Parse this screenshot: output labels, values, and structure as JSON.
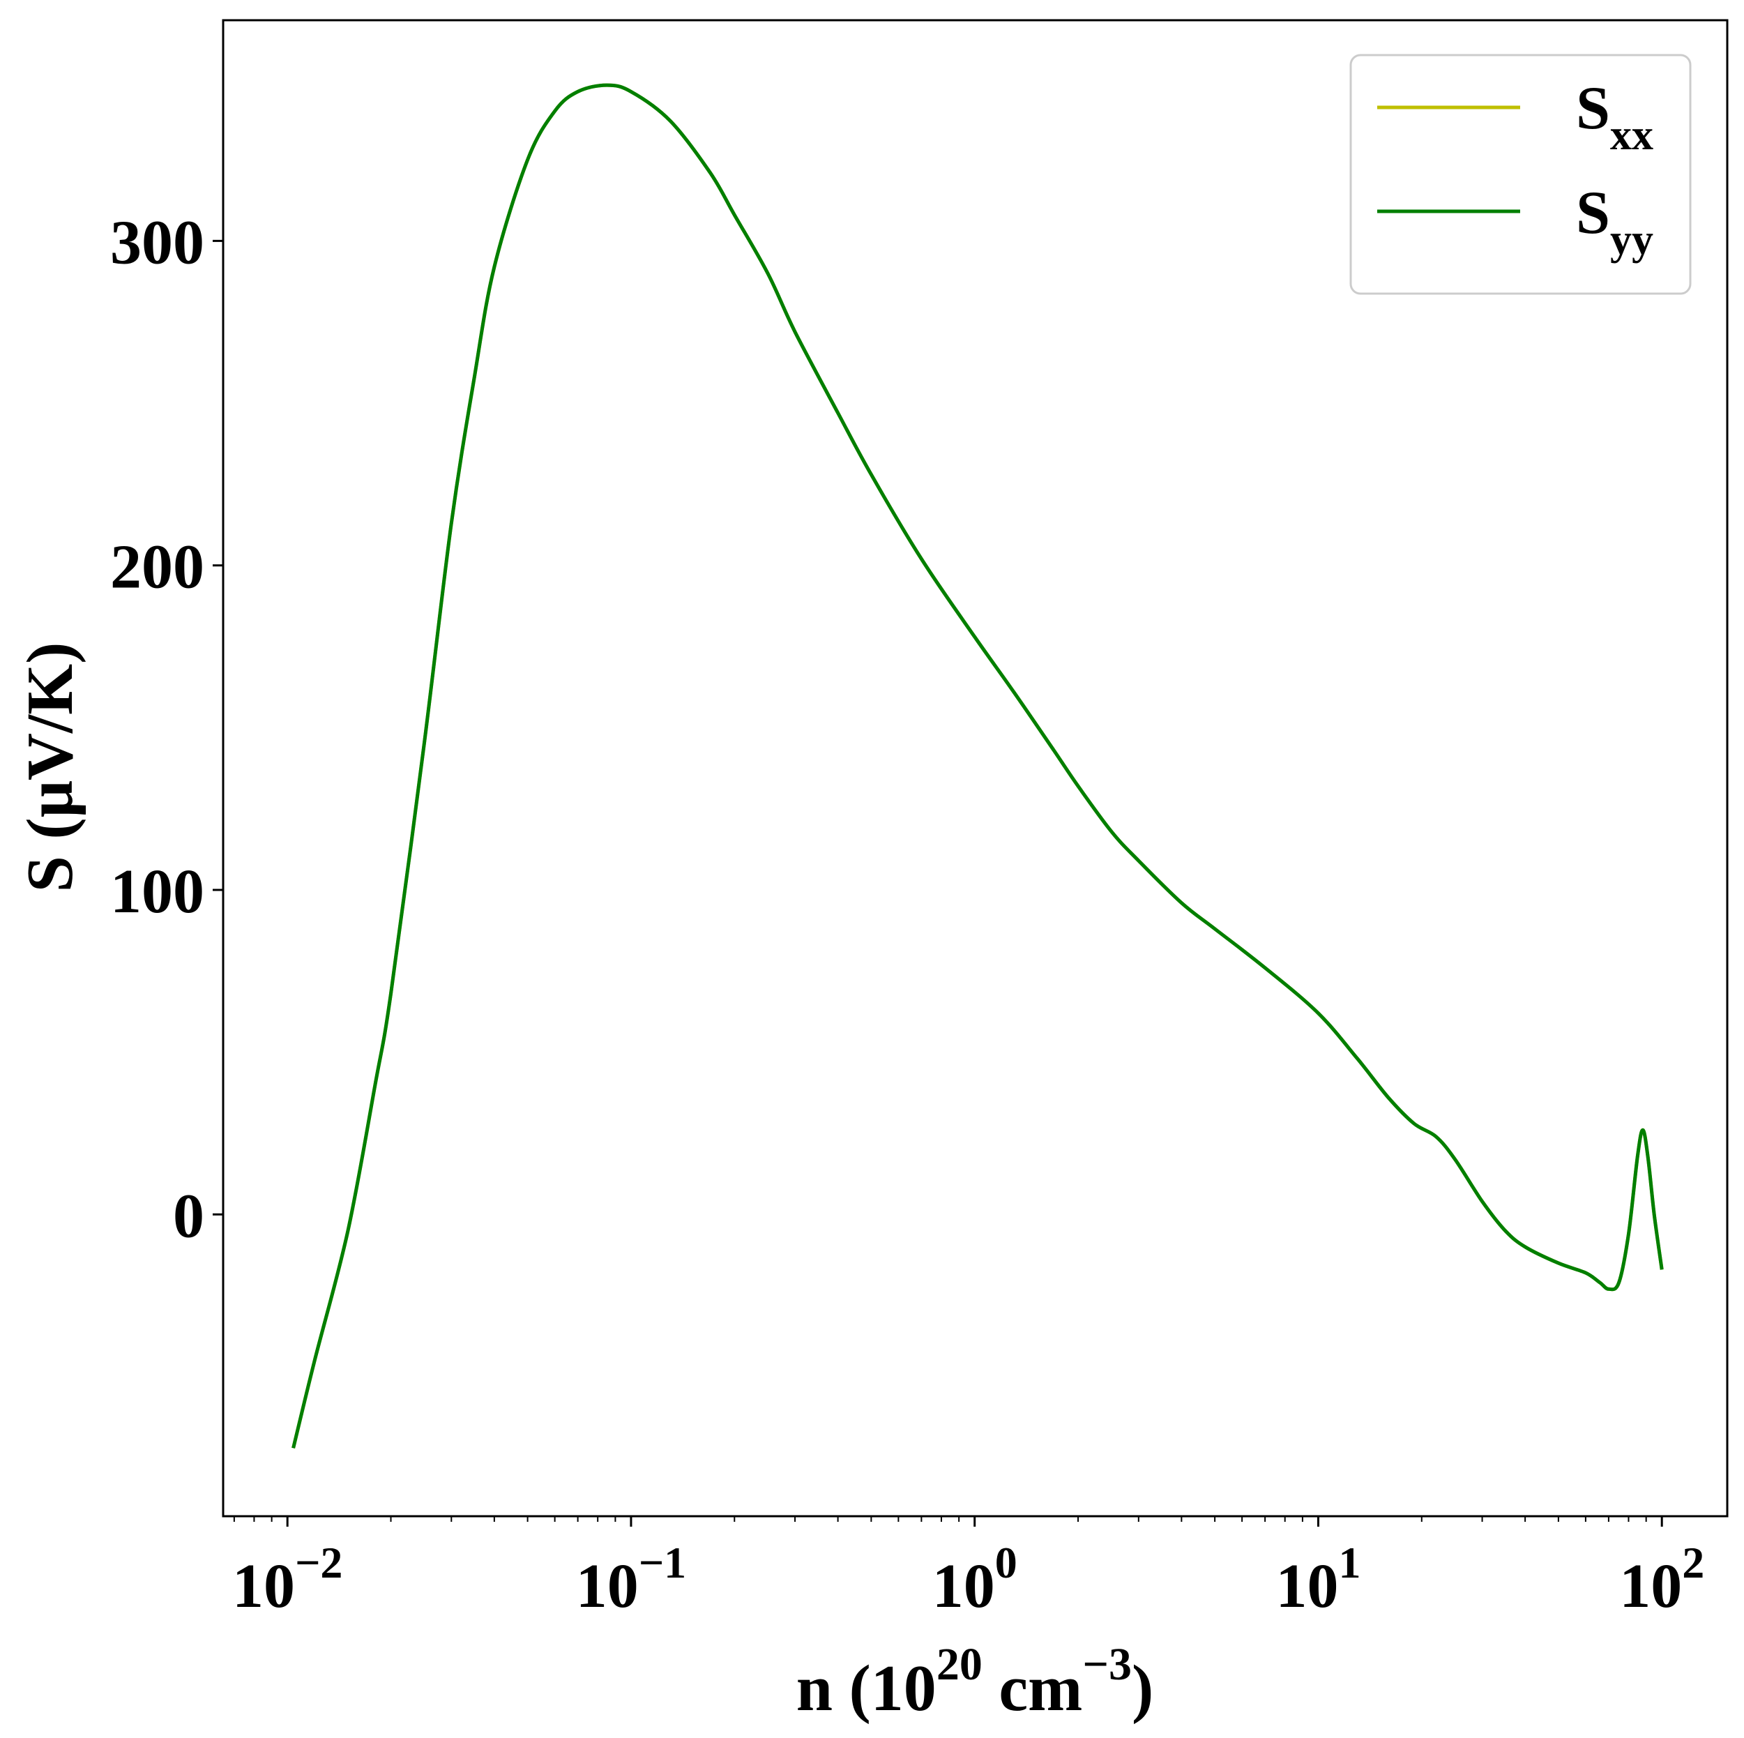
{
  "chart_data": {
    "type": "line",
    "title": "",
    "xlabel": {
      "base": "n (10",
      "exp": "20",
      "mid": " cm",
      "exp2": "−3",
      "end": ")"
    },
    "ylabel": "S (μV/K)",
    "xscale": "log",
    "xlim": [
      0.0065,
      155
    ],
    "ylim": [
      -93,
      368
    ],
    "x_ticks": [
      {
        "value": 0.01,
        "base": "10",
        "exp": "−2"
      },
      {
        "value": 0.1,
        "base": "10",
        "exp": "−1"
      },
      {
        "value": 1,
        "base": "10",
        "exp": "0"
      },
      {
        "value": 10,
        "base": "10",
        "exp": "1"
      },
      {
        "value": 100,
        "base": "10",
        "exp": "2"
      }
    ],
    "y_ticks": [
      {
        "value": 0,
        "label": "0"
      },
      {
        "value": 100,
        "label": "100"
      },
      {
        "value": 200,
        "label": "200"
      },
      {
        "value": 300,
        "label": "300"
      }
    ],
    "grid": false,
    "legend": {
      "position": "top-right",
      "entries": [
        {
          "base": "S",
          "sub": "xx",
          "color": "#bfbf00"
        },
        {
          "base": "S",
          "sub": "yy",
          "color": "#007f00"
        }
      ]
    },
    "series": [
      {
        "name": "S_xx",
        "color": "#bfbf00",
        "x": [
          0.0104,
          0.012,
          0.015,
          0.018,
          0.02,
          0.025,
          0.03,
          0.035,
          0.04,
          0.05,
          0.06,
          0.07,
          0.085,
          0.1,
          0.13,
          0.17,
          0.2,
          0.25,
          0.3,
          0.4,
          0.5,
          0.7,
          1.0,
          1.3,
          1.7,
          2.0,
          2.5,
          3.0,
          4.0,
          5.0,
          7.0,
          10.0,
          13.0,
          16.0,
          19.0,
          22.0,
          25.0,
          30.0,
          35.0,
          40.0,
          50.0,
          60.0,
          66.0,
          70.0,
          75.0,
          80.0,
          85.0,
          88.0,
          91.0,
          95.0,
          100.0
        ],
        "y": [
          -72,
          -45,
          -5,
          40,
          68,
          145,
          213,
          258,
          292,
          325,
          340,
          346,
          348,
          346,
          337,
          321,
          308,
          290,
          272,
          247,
          228,
          202,
          178,
          161,
          143,
          132,
          118,
          109,
          96,
          88,
          76,
          62,
          48,
          36,
          28,
          24,
          17,
          4,
          -5,
          -10,
          -15,
          -18,
          -21,
          -23,
          -21,
          -6,
          18,
          26,
          18,
          0,
          -17
        ]
      },
      {
        "name": "S_yy",
        "color": "#007f00",
        "x": [
          0.0104,
          0.012,
          0.015,
          0.018,
          0.02,
          0.025,
          0.03,
          0.035,
          0.04,
          0.05,
          0.06,
          0.07,
          0.085,
          0.1,
          0.13,
          0.17,
          0.2,
          0.25,
          0.3,
          0.4,
          0.5,
          0.7,
          1.0,
          1.3,
          1.7,
          2.0,
          2.5,
          3.0,
          4.0,
          5.0,
          7.0,
          10.0,
          13.0,
          16.0,
          19.0,
          22.0,
          25.0,
          30.0,
          35.0,
          40.0,
          50.0,
          60.0,
          66.0,
          70.0,
          75.0,
          80.0,
          85.0,
          88.0,
          91.0,
          95.0,
          100.0
        ],
        "y": [
          -72,
          -45,
          -5,
          40,
          68,
          145,
          213,
          258,
          292,
          325,
          340,
          346,
          348,
          346,
          337,
          321,
          308,
          290,
          272,
          247,
          228,
          202,
          178,
          161,
          143,
          132,
          118,
          109,
          96,
          88,
          76,
          62,
          48,
          36,
          28,
          24,
          17,
          4,
          -5,
          -10,
          -15,
          -18,
          -21,
          -23,
          -21,
          -6,
          18,
          26,
          18,
          0,
          -17
        ]
      }
    ]
  }
}
